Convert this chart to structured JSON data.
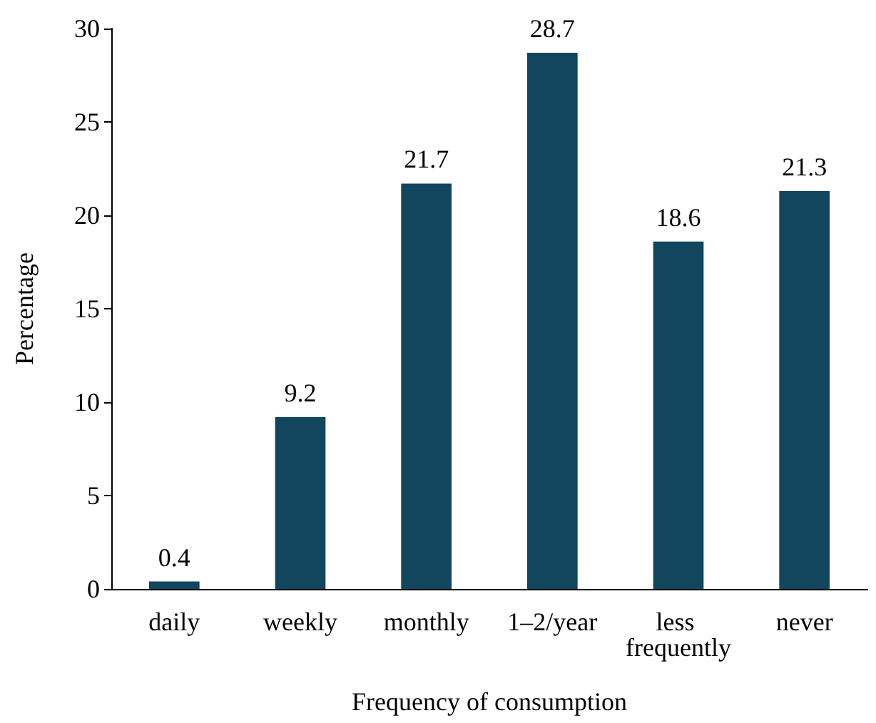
{
  "chart_data": {
    "type": "bar",
    "xlabel": "Frequency of consumption",
    "ylabel": "Percentage",
    "categories": [
      "daily",
      "weekly",
      "monthly",
      "1–2/year",
      "less frequently",
      "never"
    ],
    "values": [
      0.4,
      9.2,
      21.7,
      28.7,
      18.6,
      21.3
    ],
    "color": "#12455e",
    "ylim": [
      0,
      30
    ],
    "yticks": [
      0,
      5,
      10,
      15,
      20,
      25,
      30
    ],
    "grid": false,
    "data_labels": true
  }
}
